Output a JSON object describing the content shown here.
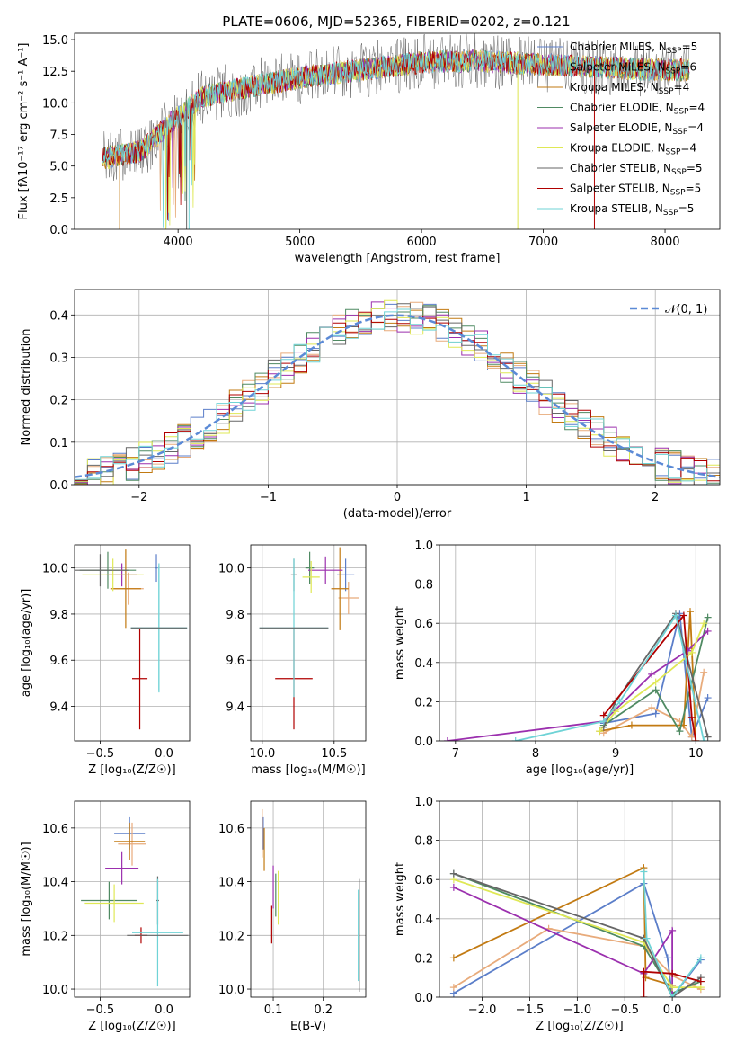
{
  "title": "PLATE=0606, MJD=52365, FIBERID=0202, z=0.121",
  "models": [
    {
      "name": "Chabrier MILES",
      "nssp": "5",
      "color": "#5b7ec9"
    },
    {
      "name": "Salpeter MILES",
      "nssp": "6",
      "color": "#e8ab7b"
    },
    {
      "name": "Kroupa MILES",
      "nssp": "4",
      "color": "#c27a12"
    },
    {
      "name": "Chabrier ELODIE",
      "nssp": "4",
      "color": "#4f8a62"
    },
    {
      "name": "Salpeter ELODIE",
      "nssp": "4",
      "color": "#9b2fae"
    },
    {
      "name": "Kroupa ELODIE",
      "nssp": "4",
      "color": "#dfe855"
    },
    {
      "name": "Chabrier STELIB",
      "nssp": "5",
      "color": "#666666"
    },
    {
      "name": "Salpeter STELIB",
      "nssp": "5",
      "color": "#b00000"
    },
    {
      "name": "Kroupa STELIB",
      "nssp": "5",
      "color": "#6fd3d6"
    }
  ],
  "legend_nssp_prefix": "N",
  "legend_nssp_sub": "SSP",
  "chart_data": [
    {
      "id": "spectrum",
      "type": "line",
      "xlabel": "wavelength [Angstrom, rest frame]",
      "ylabel": "Flux [fλ10⁻¹⁷ erg cm⁻² s⁻¹ A⁻¹]",
      "xlim": [
        3150,
        8450
      ],
      "ylim": [
        0,
        15.5
      ],
      "xticks": [
        4000,
        5000,
        6000,
        7000,
        8000
      ],
      "yticks": [
        0.0,
        2.5,
        5.0,
        7.5,
        10.0,
        12.5,
        15.0
      ],
      "xtick_labels": [
        "4000",
        "5000",
        "6000",
        "7000",
        "8000"
      ],
      "ytick_labels": [
        "0.0",
        "2.5",
        "5.0",
        "7.5",
        "10.0",
        "12.5",
        "15.0"
      ],
      "x_start": 3380,
      "x_end": 8200,
      "baseline_anchor_points": [
        [
          3380,
          5.6
        ],
        [
          3700,
          6.2
        ],
        [
          3950,
          8.5
        ],
        [
          4200,
          10.5
        ],
        [
          4600,
          11.3
        ],
        [
          5000,
          12.0
        ],
        [
          5500,
          12.6
        ],
        [
          6000,
          13.2
        ],
        [
          6500,
          13.3
        ],
        [
          7000,
          13.0
        ],
        [
          7500,
          12.8
        ],
        [
          8000,
          12.6
        ],
        [
          8200,
          12.6
        ]
      ],
      "legend_loc": "upper right"
    },
    {
      "id": "residuals",
      "type": "histogram",
      "xlabel": "(data-model)/error",
      "ylabel": "Normed distribution",
      "xlim": [
        -2.5,
        2.5
      ],
      "ylim": [
        0,
        0.46
      ],
      "xticks": [
        -2,
        -1,
        0,
        1,
        2
      ],
      "yticks": [
        0.0,
        0.1,
        0.2,
        0.3,
        0.4
      ],
      "xtick_labels": [
        "−2",
        "−1",
        "0",
        "1",
        "2"
      ],
      "ytick_labels": [
        "0.0",
        "0.1",
        "0.2",
        "0.3",
        "0.4"
      ],
      "bin_width": 0.1,
      "bins_from": -2.5,
      "bins_to": 2.5,
      "reference_curve": {
        "label": "𝒩(0, 1)",
        "mean": 0,
        "sigma": 1,
        "color": "#5b8ad6"
      },
      "legend_loc": "upper right"
    },
    {
      "id": "age_vs_Z",
      "type": "errorbar",
      "xlabel": "Z [log₁₀(Z/Z☉)]",
      "ylabel": "age  [log₁₀(age/yr)]",
      "xlim": [
        -0.7,
        0.2
      ],
      "ylim": [
        9.25,
        10.1
      ],
      "xticks": [
        -0.5,
        0.0
      ],
      "yticks": [
        9.4,
        9.6,
        9.8,
        10.0
      ],
      "xtick_labels": [
        "−0.5",
        "0.0"
      ],
      "ytick_labels": [
        "9.4",
        "9.6",
        "9.8",
        "10.0"
      ],
      "points": [
        {
          "model": 0,
          "x": -0.06,
          "xerr": 0.01,
          "y": 10.0,
          "yerr": 0.06
        },
        {
          "model": 1,
          "x": -0.28,
          "xerr": 0.12,
          "y": 9.91,
          "yerr": 0.07
        },
        {
          "model": 2,
          "x": -0.3,
          "xerr": 0.12,
          "y": 9.91,
          "yerr": 0.17
        },
        {
          "model": 3,
          "x": -0.44,
          "xerr": 0.22,
          "y": 9.99,
          "yerr": 0.08
        },
        {
          "model": 4,
          "x": -0.33,
          "xerr": 0.12,
          "y": 9.97,
          "yerr": 0.05
        },
        {
          "model": 5,
          "x": -0.4,
          "xerr": 0.24,
          "y": 9.97,
          "yerr": 0.07
        },
        {
          "model": 6,
          "x": -0.5,
          "xerr": 0.22,
          "y": 9.99,
          "yerr": 0.07
        },
        {
          "model": 7,
          "x": -0.19,
          "xerr": 0.06,
          "y": 9.52,
          "yerr": 0.22
        },
        {
          "model": 8,
          "x": -0.04,
          "xerr": 0.22,
          "y": 9.74,
          "yerr": 0.27
        },
        {
          "model": 8,
          "x": -0.04,
          "xerr": 0.22,
          "y": 9.74,
          "yerr": 0.28
        },
        {
          "model": 6,
          "x": -0.04,
          "xerr": 0.22,
          "y": 9.74,
          "yerr": 0.0
        }
      ]
    },
    {
      "id": "age_vs_mass",
      "type": "errorbar",
      "xlabel": "mass [log₁₀(M/M☉)]",
      "ylabel": "",
      "xlim": [
        9.92,
        10.72
      ],
      "ylim": [
        9.25,
        10.1
      ],
      "xticks": [
        10.0,
        10.5
      ],
      "yticks": [
        9.4,
        9.6,
        9.8,
        10.0
      ],
      "xtick_labels": [
        "10.0",
        "10.5"
      ],
      "ytick_labels": [
        "9.4",
        "9.6",
        "9.8",
        "10.0"
      ],
      "points": [
        {
          "model": 0,
          "x": 10.58,
          "xerr": 0.06,
          "y": 9.97,
          "yerr": 0.07
        },
        {
          "model": 1,
          "x": 10.6,
          "xerr": 0.07,
          "y": 9.87,
          "yerr": 0.07
        },
        {
          "model": 2,
          "x": 10.54,
          "xerr": 0.06,
          "y": 9.91,
          "yerr": 0.18
        },
        {
          "model": 3,
          "x": 10.33,
          "xerr": 0.03,
          "y": 10.0,
          "yerr": 0.07
        },
        {
          "model": 4,
          "x": 10.44,
          "xerr": 0.12,
          "y": 9.99,
          "yerr": 0.06
        },
        {
          "model": 5,
          "x": 10.34,
          "xerr": 0.06,
          "y": 9.96,
          "yerr": 0.07
        },
        {
          "model": 6,
          "x": 10.22,
          "xerr": 0.02,
          "y": 9.97,
          "yerr": 0.07
        },
        {
          "model": 7,
          "x": 10.22,
          "xerr": 0.13,
          "y": 9.52,
          "yerr": 0.22
        },
        {
          "model": 8,
          "x": 10.22,
          "xerr": 0.24,
          "y": 9.74,
          "yerr": 0.3
        },
        {
          "model": 6,
          "x": 10.22,
          "xerr": 0.24,
          "y": 9.74,
          "yerr": 0.0
        }
      ]
    },
    {
      "id": "weight_vs_age",
      "type": "line",
      "xlabel": "age  [log₁₀(age/yr)]",
      "ylabel": "mass weight",
      "xlim": [
        6.8,
        10.3
      ],
      "ylim": [
        0,
        1.0
      ],
      "xticks": [
        7,
        8,
        9,
        10
      ],
      "yticks": [
        0.0,
        0.2,
        0.4,
        0.6,
        0.8,
        1.0
      ],
      "xtick_labels": [
        "7",
        "8",
        "9",
        "10"
      ],
      "ytick_labels": [
        "0.0",
        "0.2",
        "0.4",
        "0.6",
        "0.8",
        "1.0"
      ],
      "series": [
        {
          "model": 0,
          "x": [
            8.85,
            9.5,
            9.8,
            9.95,
            10.15
          ],
          "y": [
            0.09,
            0.14,
            0.65,
            0.02,
            0.22
          ]
        },
        {
          "model": 1,
          "x": [
            8.85,
            9.45,
            9.8,
            9.95,
            10.1
          ],
          "y": [
            0.04,
            0.17,
            0.1,
            0.02,
            0.35
          ]
        },
        {
          "model": 2,
          "x": [
            8.8,
            9.2,
            9.85,
            9.93,
            10.0
          ],
          "y": [
            0.05,
            0.08,
            0.08,
            0.66,
            0.0
          ]
        },
        {
          "model": 3,
          "x": [
            8.85,
            9.5,
            9.8,
            10.15
          ],
          "y": [
            0.08,
            0.26,
            0.05,
            0.63
          ]
        },
        {
          "model": 4,
          "x": [
            6.9,
            8.85,
            9.45,
            9.9,
            10.15
          ],
          "y": [
            0.0,
            0.1,
            0.34,
            0.46,
            0.56
          ]
        },
        {
          "model": 5,
          "x": [
            8.8,
            9.0,
            9.5,
            9.95,
            10.1
          ],
          "y": [
            0.05,
            0.15,
            0.3,
            0.45,
            0.6
          ]
        },
        {
          "model": 6,
          "x": [
            8.85,
            9.0,
            9.75,
            10.15
          ],
          "y": [
            0.07,
            0.2,
            0.65,
            0.02
          ]
        },
        {
          "model": 7,
          "x": [
            8.85,
            9.85,
            9.95,
            10.0
          ],
          "y": [
            0.13,
            0.64,
            0.12,
            0.0
          ]
        },
        {
          "model": 8,
          "x": [
            7.75,
            8.85,
            9.05,
            9.75,
            10.1
          ],
          "y": [
            0.0,
            0.1,
            0.2,
            0.64,
            0.0
          ]
        }
      ]
    },
    {
      "id": "mass_vs_Z",
      "type": "errorbar",
      "xlabel": "Z [log₁₀(Z/Z☉)]",
      "ylabel": "mass [log₁₀(M/M☉)]",
      "xlim": [
        -0.7,
        0.2
      ],
      "ylim": [
        9.97,
        10.7
      ],
      "xticks": [
        -0.5,
        0.0
      ],
      "yticks": [
        10.0,
        10.2,
        10.4,
        10.6
      ],
      "xtick_labels": [
        "−0.5",
        "0.0"
      ],
      "ytick_labels": [
        "10.0",
        "10.2",
        "10.4",
        "10.6"
      ],
      "points": [
        {
          "model": 0,
          "x": -0.27,
          "xerr": 0.12,
          "y": 10.58,
          "yerr": 0.06
        },
        {
          "model": 1,
          "x": -0.25,
          "xerr": 0.11,
          "y": 10.54,
          "yerr": 0.08
        },
        {
          "model": 2,
          "x": -0.27,
          "xerr": 0.12,
          "y": 10.55,
          "yerr": 0.07
        },
        {
          "model": 3,
          "x": -0.43,
          "xerr": 0.22,
          "y": 10.33,
          "yerr": 0.07
        },
        {
          "model": 4,
          "x": -0.33,
          "xerr": 0.13,
          "y": 10.45,
          "yerr": 0.06
        },
        {
          "model": 5,
          "x": -0.39,
          "xerr": 0.23,
          "y": 10.32,
          "yerr": 0.07
        },
        {
          "model": 6,
          "x": -0.05,
          "xerr": 0.01,
          "y": 10.33,
          "yerr": 0.09
        },
        {
          "model": 7,
          "x": -0.18,
          "xerr": 0.05,
          "y": 10.2,
          "yerr": 0.03
        },
        {
          "model": 8,
          "x": -0.05,
          "xerr": 0.2,
          "y": 10.21,
          "yerr": 0.2
        },
        {
          "model": 6,
          "x": -0.05,
          "xerr": 0.24,
          "y": 10.2,
          "yerr": 0.0
        }
      ]
    },
    {
      "id": "mass_vs_EBV",
      "type": "errorbar",
      "xlabel": "E(B-V)",
      "ylabel": "",
      "xlim": [
        0.055,
        0.285
      ],
      "ylim": [
        9.97,
        10.7
      ],
      "xticks": [
        0.1,
        0.2
      ],
      "yticks": [
        10.0,
        10.2,
        10.4,
        10.6
      ],
      "xtick_labels": [
        "0.1",
        "0.2"
      ],
      "ytick_labels": [
        "10.0",
        "10.2",
        "10.4",
        "10.6"
      ],
      "points": [
        {
          "model": 0,
          "x": 0.08,
          "xerr": 0.0,
          "y": 10.58,
          "yerr": 0.06
        },
        {
          "model": 1,
          "x": 0.078,
          "xerr": 0.0,
          "y": 10.58,
          "yerr": 0.09
        },
        {
          "model": 2,
          "x": 0.082,
          "xerr": 0.0,
          "y": 10.52,
          "yerr": 0.08
        },
        {
          "model": 3,
          "x": 0.105,
          "xerr": 0.0,
          "y": 10.35,
          "yerr": 0.08
        },
        {
          "model": 4,
          "x": 0.1,
          "xerr": 0.0,
          "y": 10.38,
          "yerr": 0.08
        },
        {
          "model": 5,
          "x": 0.11,
          "xerr": 0.0,
          "y": 10.34,
          "yerr": 0.1
        },
        {
          "model": 6,
          "x": 0.272,
          "xerr": 0.0,
          "y": 10.2,
          "yerr": 0.21
        },
        {
          "model": 7,
          "x": 0.097,
          "xerr": 0.0,
          "y": 10.24,
          "yerr": 0.07
        },
        {
          "model": 8,
          "x": 0.27,
          "xerr": 0.0,
          "y": 10.2,
          "yerr": 0.17
        }
      ]
    },
    {
      "id": "weight_vs_Z",
      "type": "line",
      "xlabel": "Z [log₁₀(Z/Z☉)]",
      "ylabel": "mass weight",
      "xlim": [
        -2.45,
        0.5
      ],
      "ylim": [
        0,
        1.0
      ],
      "xticks": [
        -2.0,
        -1.5,
        -1.0,
        -0.5,
        0.0
      ],
      "yticks": [
        0.0,
        0.2,
        0.4,
        0.6,
        0.8,
        1.0
      ],
      "xtick_labels": [
        "−2.0",
        "−1.5",
        "−1.0",
        "−0.5",
        "0.0"
      ],
      "ytick_labels": [
        "0.0",
        "0.2",
        "0.4",
        "0.6",
        "0.8",
        "1.0"
      ],
      "series": [
        {
          "model": 0,
          "x": [
            -2.3,
            -0.3,
            -0.05,
            0.0,
            0.3
          ],
          "y": [
            0.02,
            0.58,
            0.2,
            0.0,
            0.19
          ]
        },
        {
          "model": 1,
          "x": [
            -2.3,
            -1.3,
            -0.3,
            0.0,
            0.3
          ],
          "y": [
            0.05,
            0.35,
            0.26,
            0.11,
            0.04
          ]
        },
        {
          "model": 2,
          "x": [
            -2.3,
            -0.3,
            -0.28,
            0.0
          ],
          "y": [
            0.2,
            0.66,
            0.1,
            0.06
          ]
        },
        {
          "model": 3,
          "x": [
            -2.3,
            -0.3,
            0.0,
            0.3
          ],
          "y": [
            0.63,
            0.26,
            0.02,
            0.08
          ]
        },
        {
          "model": 4,
          "x": [
            -2.3,
            -0.3,
            0.0,
            0.0
          ],
          "y": [
            0.56,
            0.12,
            0.34,
            0.0
          ]
        },
        {
          "model": 5,
          "x": [
            -2.3,
            -0.3,
            0.0,
            0.3
          ],
          "y": [
            0.6,
            0.28,
            0.05,
            0.05
          ]
        },
        {
          "model": 6,
          "x": [
            -2.3,
            -0.3,
            0.0,
            0.3
          ],
          "y": [
            0.63,
            0.3,
            0.0,
            0.1
          ]
        },
        {
          "model": 7,
          "x": [
            -0.3,
            -0.3,
            0.0,
            0.3
          ],
          "y": [
            0.0,
            0.13,
            0.12,
            0.08
          ]
        },
        {
          "model": 8,
          "x": [
            -0.3,
            -0.27,
            0.0,
            0.3
          ],
          "y": [
            0.64,
            0.3,
            0.0,
            0.2
          ]
        }
      ]
    }
  ]
}
